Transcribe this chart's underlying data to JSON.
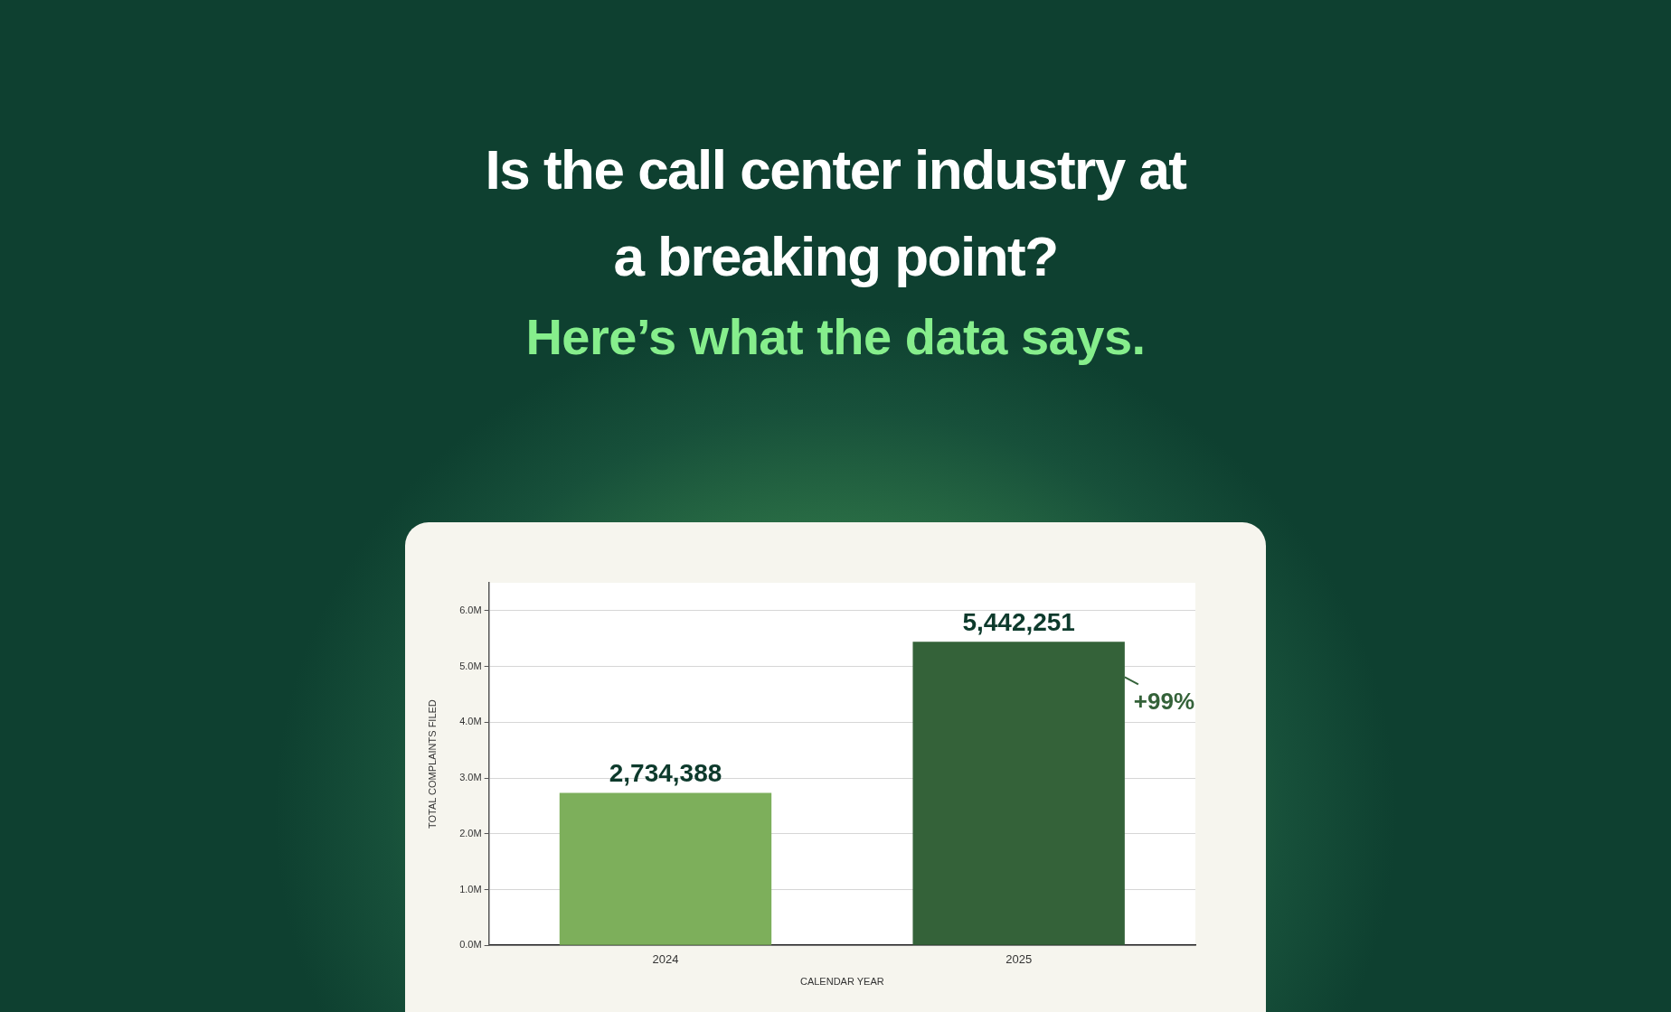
{
  "chart_data": {
    "type": "bar",
    "title": "Is the call center industry at a breaking point?",
    "subtitle": "Here’s what the data says.",
    "xlabel": "CALENDAR YEAR",
    "ylabel": "TOTAL COMPLAINTS FILED",
    "categories": [
      "2024",
      "2025"
    ],
    "values": [
      2734388,
      5442251
    ],
    "colors": [
      "#7daf5b",
      "#346239"
    ],
    "value_labels": [
      "2,734,388",
      "5,442,251"
    ],
    "ylim": [
      0,
      6500000
    ],
    "yticks": [
      {
        "value": 0,
        "label": "0.0M"
      },
      {
        "value": 1000000,
        "label": "1.0M"
      },
      {
        "value": 2000000,
        "label": "2.0M"
      },
      {
        "value": 3000000,
        "label": "3.0M"
      },
      {
        "value": 4000000,
        "label": "4.0M"
      },
      {
        "value": 5000000,
        "label": "5.0M"
      },
      {
        "value": 6000000,
        "label": "6.0M"
      }
    ],
    "grid": "y",
    "annotations": [
      "+99%"
    ]
  }
}
